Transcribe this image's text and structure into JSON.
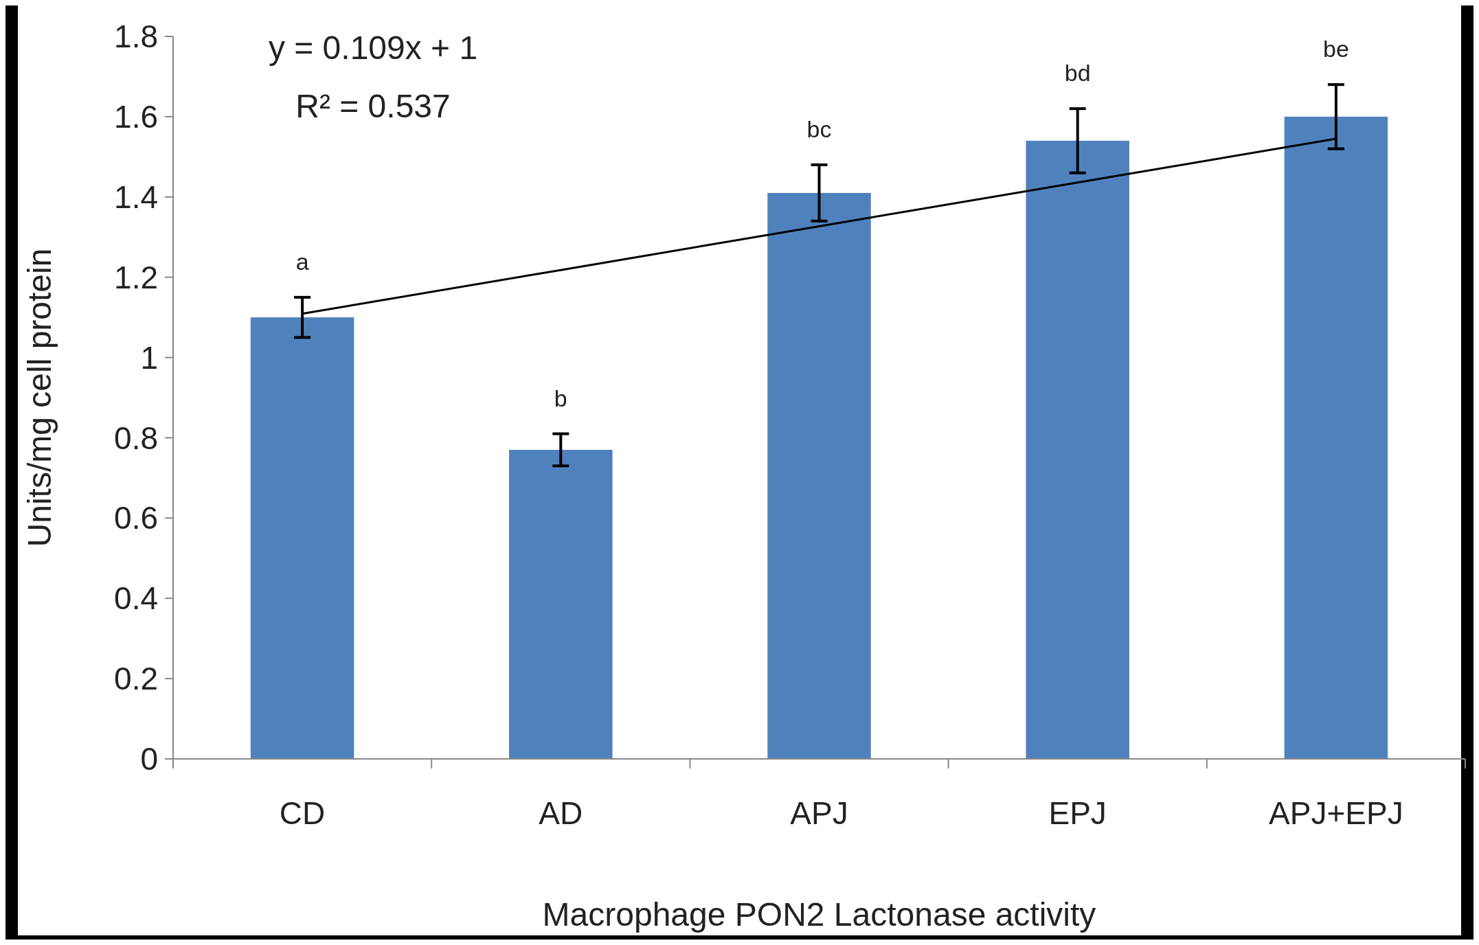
{
  "chart_data": {
    "type": "bar",
    "xlabel": "Macrophage PON2 Lactonase activity",
    "ylabel": "Units/mg cell protein",
    "categories": [
      "CD",
      "AD",
      "APJ",
      "EPJ",
      "APJ+EPJ"
    ],
    "series": [
      {
        "color": "#4f81bd",
        "values": [
          1.1,
          0.77,
          1.41,
          1.54,
          1.6
        ],
        "errors": [
          0.05,
          0.04,
          0.07,
          0.08,
          0.08
        ]
      },
      {
        "type": "line",
        "color": "#000000",
        "values": [
          1.109,
          1.218,
          1.327,
          1.436,
          1.545
        ]
      }
    ],
    "ylim": [
      0,
      1.8
    ],
    "yticks": [
      0,
      0.2,
      0.4,
      0.6,
      0.8,
      1,
      1.2,
      1.4,
      1.6,
      1.8
    ],
    "annotations": [
      "y = 0.109x + 1",
      "R² = 0.537",
      "a",
      "b",
      "bc",
      "bd",
      "be"
    ]
  }
}
